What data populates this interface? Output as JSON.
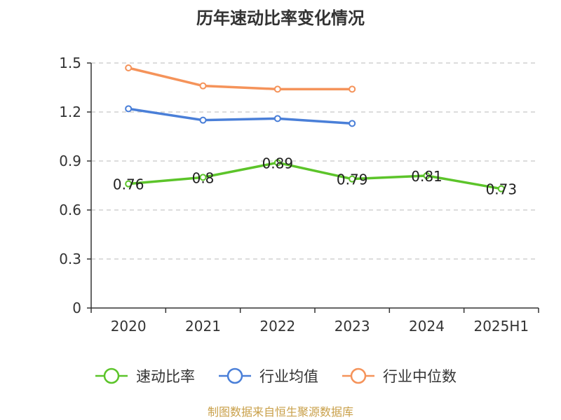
{
  "chart_data": {
    "type": "line",
    "title": "历年速动比率变化情况",
    "categories": [
      "2020",
      "2021",
      "2022",
      "2023",
      "2024",
      "2025H1"
    ],
    "ylim": [
      0,
      1.5
    ],
    "yticks": [
      "0",
      "0.3",
      "0.6",
      "0.9",
      "1.2",
      "1.5"
    ],
    "grid": true,
    "legend_position": "bottom",
    "series": [
      {
        "name": "速动比率",
        "color": "#5cc42a",
        "labeled": true,
        "values": [
          0.76,
          0.8,
          0.89,
          0.79,
          0.81,
          0.73
        ],
        "labels": [
          "0.76",
          "0.8",
          "0.89",
          "0.79",
          "0.81",
          "0.73"
        ]
      },
      {
        "name": "行业均值",
        "color": "#4a7fd8",
        "labeled": false,
        "values": [
          1.22,
          1.15,
          1.16,
          1.13,
          null,
          null
        ]
      },
      {
        "name": "行业中位数",
        "color": "#f5935a",
        "labeled": false,
        "values": [
          1.47,
          1.36,
          1.34,
          1.34,
          null,
          null
        ]
      }
    ],
    "source": "制图数据来自恒生聚源数据库"
  }
}
